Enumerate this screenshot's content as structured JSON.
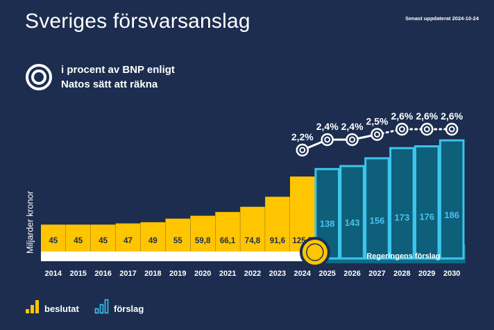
{
  "header": {
    "title": "Sveriges försvarsanslag",
    "updated": "Senast uppdaterat  2024-10-24"
  },
  "percent_legend": {
    "line1": "i procent av BNP enligt",
    "line2": "Natos sätt att räkna",
    "icon": "target-ring-icon"
  },
  "colors": {
    "background": "#1c2d4f",
    "decided": "#ffc500",
    "proposed": "#0e5f7a",
    "proposed_outline": "#3cc4ee",
    "proposed_value_text": "#49c3ec",
    "baseline_decided": "#ffffff",
    "baseline_proposed": "#0f6b86"
  },
  "legend": {
    "decided_label": "beslutat",
    "proposed_label": "förslag",
    "decided_icon": "bar-chart-icon",
    "proposed_icon": "bar-chart-outline-icon"
  },
  "chart_data": {
    "type": "bar",
    "title": "Sveriges försvarsanslag",
    "ylabel": "Miljarder kronor",
    "categories": [
      "2014",
      "2015",
      "2016",
      "2017",
      "2018",
      "2019",
      "2020",
      "2021",
      "2022",
      "2023",
      "2024",
      "2025",
      "2026",
      "2027",
      "2028",
      "2029",
      "2030"
    ],
    "series": [
      {
        "name": "beslutat",
        "values": [
          45,
          45,
          45,
          47,
          49,
          55,
          59.8,
          66.1,
          74.8,
          91.6,
          125.5,
          null,
          null,
          null,
          null,
          null,
          null
        ],
        "labels": [
          "45",
          "45",
          "45",
          "47",
          "49",
          "55",
          "59,8",
          "66,1",
          "74,8",
          "91,6",
          "125,5",
          "",
          "",
          "",
          "",
          "",
          ""
        ]
      },
      {
        "name": "förslag",
        "values": [
          null,
          null,
          null,
          null,
          null,
          null,
          null,
          null,
          null,
          null,
          null,
          138,
          143,
          156,
          173,
          176,
          186
        ],
        "labels": [
          "",
          "",
          "",
          "",
          "",
          "",
          "",
          "",
          "",
          "",
          "",
          "138",
          "143",
          "156",
          "173",
          "176",
          "186"
        ]
      }
    ],
    "percent_of_gdp": {
      "categories": [
        "2024",
        "2025",
        "2026",
        "2027",
        "2028",
        "2029",
        "2030"
      ],
      "values": [
        2.2,
        2.4,
        2.4,
        2.5,
        2.6,
        2.6,
        2.6
      ],
      "labels": [
        "2,2%",
        "2,4%",
        "2,4%",
        "2,5%",
        "2,6%",
        "2,6%",
        "2,6%"
      ]
    },
    "annotation": "Regeringens förslag",
    "axis_baseline": 0,
    "grid": false
  }
}
